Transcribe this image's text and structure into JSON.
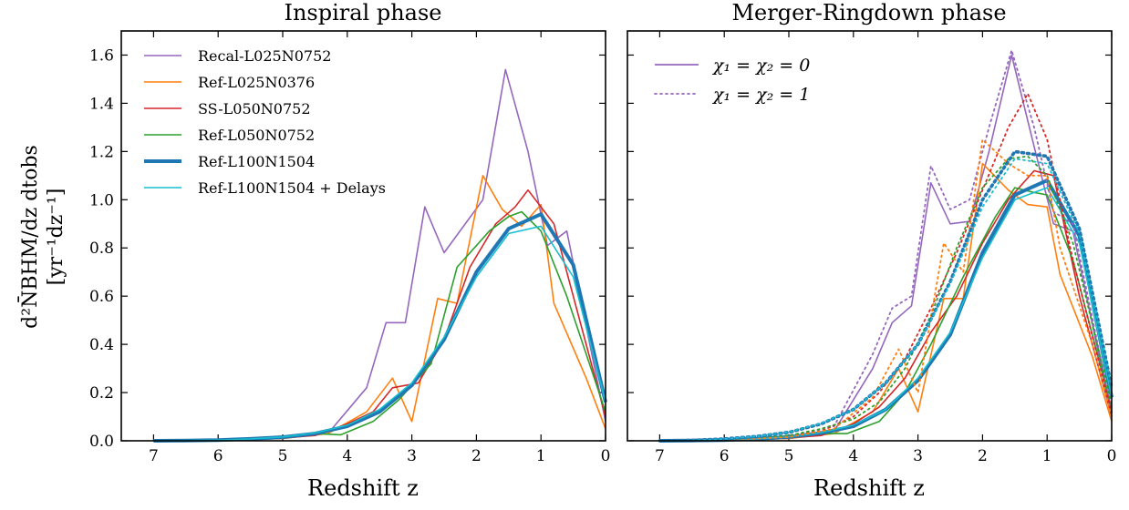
{
  "chart_data": [
    {
      "type": "line",
      "title": "Inspiral phase",
      "xlabel": "Redshift z",
      "ylabel_line1": "d²N̄BHM/dz dtobs",
      "ylabel_line2": "[yr⁻¹dz⁻¹]",
      "xlim": [
        7.5,
        0
      ],
      "ylim": [
        0,
        1.7
      ],
      "x_ticks": [
        "7",
        "6",
        "5",
        "4",
        "3",
        "2",
        "1",
        "0"
      ],
      "y_ticks": [
        "0.0",
        "0.2",
        "0.4",
        "0.6",
        "0.8",
        "1.0",
        "1.2",
        "1.4",
        "1.6"
      ],
      "legend_position": "upper-left",
      "series": [
        {
          "name": "Recal-L025N0752",
          "color": "#9467bd",
          "width": 1.6,
          "x": [
            7,
            6,
            5,
            4.3,
            3.7,
            3.4,
            3.1,
            2.8,
            2.5,
            1.9,
            1.55,
            1.2,
            0.9,
            0.6,
            0
          ],
          "y": [
            0,
            0.002,
            0.01,
            0.03,
            0.22,
            0.49,
            0.49,
            0.97,
            0.78,
            1.0,
            1.54,
            1.2,
            0.81,
            0.87,
            0.08
          ]
        },
        {
          "name": "Ref-L025N0376",
          "color": "#ff7f0e",
          "width": 1.6,
          "x": [
            7,
            6,
            5,
            4.3,
            3.7,
            3.3,
            3.0,
            2.6,
            2.3,
            1.9,
            1.6,
            1.3,
            1.0,
            0.8,
            0.3,
            0
          ],
          "y": [
            0,
            0.002,
            0.01,
            0.03,
            0.12,
            0.26,
            0.08,
            0.59,
            0.57,
            1.1,
            0.96,
            0.89,
            0.98,
            0.57,
            0.26,
            0.05
          ]
        },
        {
          "name": "SS-L050N0752",
          "color": "#d62728",
          "width": 1.6,
          "x": [
            7,
            6,
            5,
            4.5,
            4.0,
            3.6,
            3.3,
            2.9,
            2.5,
            2.1,
            1.7,
            1.4,
            1.2,
            0.8,
            0.5,
            0
          ],
          "y": [
            0,
            0.003,
            0.012,
            0.022,
            0.07,
            0.12,
            0.22,
            0.24,
            0.42,
            0.72,
            0.9,
            0.97,
            1.04,
            0.9,
            0.6,
            0.1
          ]
        },
        {
          "name": "Ref-L050N0752",
          "color": "#2ca02c",
          "width": 1.6,
          "x": [
            7,
            6,
            5,
            4.5,
            4.1,
            3.6,
            3.2,
            2.7,
            2.3,
            1.8,
            1.5,
            1.3,
            1.0,
            0.6,
            0
          ],
          "y": [
            0,
            0.003,
            0.015,
            0.03,
            0.025,
            0.08,
            0.17,
            0.32,
            0.72,
            0.87,
            0.93,
            0.95,
            0.87,
            0.6,
            0.12
          ]
        },
        {
          "name": "Ref-L100N1504",
          "color": "#1f77b4",
          "width": 4,
          "x": [
            7,
            6.5,
            6,
            5.5,
            5,
            4.5,
            4,
            3.5,
            3,
            2.5,
            2,
            1.5,
            1,
            0.5,
            0
          ],
          "y": [
            0,
            0.001,
            0.003,
            0.008,
            0.015,
            0.03,
            0.06,
            0.12,
            0.23,
            0.42,
            0.7,
            0.88,
            0.94,
            0.73,
            0.16
          ]
        },
        {
          "name": "Ref-L100N1504 + Delays",
          "color": "#17becf",
          "width": 1.6,
          "x": [
            7,
            6.5,
            6,
            5.5,
            5,
            4.5,
            4,
            3.5,
            3,
            2.5,
            2,
            1.5,
            1,
            0.5,
            0
          ],
          "y": [
            0,
            0.001,
            0.003,
            0.008,
            0.016,
            0.032,
            0.065,
            0.13,
            0.24,
            0.43,
            0.68,
            0.86,
            0.89,
            0.68,
            0.16
          ]
        }
      ]
    },
    {
      "type": "line",
      "title": "Merger-Ringdown phase",
      "xlabel": "Redshift z",
      "xlim": [
        7.5,
        0
      ],
      "ylim": [
        0,
        1.7
      ],
      "x_ticks": [
        "7",
        "6",
        "5",
        "4",
        "3",
        "2",
        "1",
        "0"
      ],
      "legend_position": "upper-left",
      "legend": [
        {
          "label": "χ₁ = χ₂ = 0",
          "style": "solid",
          "color": "#9467bd"
        },
        {
          "label": "χ₁ = χ₂ = 1",
          "style": "dotted",
          "color": "#9467bd"
        }
      ],
      "series": [
        {
          "name": "Recal-L025N0752",
          "color": "#9467bd",
          "width": 1.6,
          "dash": "",
          "x": [
            7,
            6,
            5,
            4.3,
            3.7,
            3.4,
            3.1,
            2.8,
            2.5,
            2.2,
            1.9,
            1.55,
            1.2,
            0.9,
            0.6,
            0
          ],
          "y": [
            0,
            0.002,
            0.01,
            0.04,
            0.3,
            0.49,
            0.56,
            1.07,
            0.9,
            0.91,
            1.2,
            1.6,
            1.22,
            0.9,
            0.87,
            0.1
          ]
        },
        {
          "name": "Ref-L025N0376",
          "color": "#ff7f0e",
          "width": 1.6,
          "dash": "",
          "x": [
            7,
            6,
            5,
            4.3,
            3.7,
            3.3,
            3.0,
            2.6,
            2.3,
            2.0,
            1.6,
            1.3,
            1.0,
            0.8,
            0.3,
            0
          ],
          "y": [
            0,
            0.002,
            0.01,
            0.03,
            0.12,
            0.3,
            0.12,
            0.59,
            0.59,
            1.15,
            1.04,
            0.98,
            0.97,
            0.69,
            0.35,
            0.08
          ]
        },
        {
          "name": "SS-L050N0752",
          "color": "#d62728",
          "width": 1.6,
          "dash": "",
          "x": [
            7,
            6,
            5,
            4.5,
            4.0,
            3.6,
            3.2,
            2.8,
            2.4,
            2.0,
            1.6,
            1.2,
            0.9,
            0.5,
            0
          ],
          "y": [
            0,
            0.003,
            0.012,
            0.022,
            0.07,
            0.14,
            0.26,
            0.45,
            0.6,
            0.82,
            1.0,
            1.12,
            1.1,
            0.6,
            0.1
          ]
        },
        {
          "name": "Ref-L050N0752",
          "color": "#2ca02c",
          "width": 1.6,
          "dash": "",
          "x": [
            7,
            6,
            5,
            4.5,
            4.1,
            3.6,
            3.2,
            2.8,
            2.3,
            1.8,
            1.5,
            1.2,
            1.0,
            0.6,
            0
          ],
          "y": [
            0,
            0.003,
            0.015,
            0.03,
            0.03,
            0.08,
            0.2,
            0.4,
            0.68,
            0.93,
            1.05,
            1.03,
            1.02,
            0.75,
            0.13
          ]
        },
        {
          "name": "Ref-L100N1504",
          "color": "#1f77b4",
          "width": 4,
          "dash": "",
          "x": [
            7,
            6.5,
            6,
            5.5,
            5,
            4.5,
            4,
            3.5,
            3,
            2.5,
            2,
            1.5,
            1,
            0.5,
            0
          ],
          "y": [
            0,
            0.001,
            0.003,
            0.008,
            0.016,
            0.032,
            0.06,
            0.13,
            0.25,
            0.44,
            0.78,
            1.02,
            1.08,
            0.85,
            0.18
          ]
        },
        {
          "name": "Ref-L100N1504 + Delays",
          "color": "#17becf",
          "width": 1.6,
          "dash": "",
          "x": [
            7,
            6.5,
            6,
            5.5,
            5,
            4.5,
            4,
            3.5,
            3,
            2.5,
            2,
            1.5,
            1,
            0.5,
            0
          ],
          "y": [
            0,
            0.001,
            0.003,
            0.008,
            0.017,
            0.034,
            0.065,
            0.13,
            0.26,
            0.45,
            0.76,
            1.0,
            1.05,
            0.82,
            0.18
          ]
        },
        {
          "name": "Recal-L025N0752 (χ=1)",
          "color": "#9467bd",
          "width": 1.8,
          "dash": "2,4",
          "x": [
            7,
            6,
            5,
            4.3,
            3.7,
            3.4,
            3.1,
            2.8,
            2.5,
            2.2,
            1.9,
            1.55,
            1.2,
            0.9,
            0.6,
            0
          ],
          "y": [
            0,
            0.003,
            0.015,
            0.06,
            0.36,
            0.55,
            0.6,
            1.14,
            0.96,
            1.0,
            1.3,
            1.62,
            1.3,
            0.95,
            0.9,
            0.12
          ]
        },
        {
          "name": "SS-L050N0752 (χ=1)",
          "color": "#d62728",
          "width": 1.8,
          "dash": "2,4",
          "x": [
            7,
            6,
            5,
            4.5,
            4.0,
            3.6,
            3.2,
            2.8,
            2.4,
            2.0,
            1.6,
            1.3,
            1.0,
            0.6,
            0
          ],
          "y": [
            0,
            0.004,
            0.02,
            0.04,
            0.1,
            0.2,
            0.34,
            0.55,
            0.78,
            1.04,
            1.3,
            1.44,
            1.25,
            0.75,
            0.12
          ]
        },
        {
          "name": "Ref-L050N0752 (χ=1)",
          "color": "#2ca02c",
          "width": 1.8,
          "dash": "2,4",
          "x": [
            7,
            6,
            5,
            4.5,
            4.0,
            3.6,
            3.2,
            2.8,
            2.4,
            2.0,
            1.6,
            1.3,
            1.0,
            0.6,
            0
          ],
          "y": [
            0,
            0.004,
            0.022,
            0.05,
            0.09,
            0.16,
            0.3,
            0.52,
            0.8,
            1.05,
            1.17,
            1.18,
            1.1,
            0.82,
            0.15
          ]
        },
        {
          "name": "Ref-L025N0376 (χ=1)",
          "color": "#ff7f0e",
          "width": 1.8,
          "dash": "2,4",
          "x": [
            7,
            6,
            5,
            4.3,
            3.7,
            3.3,
            3.0,
            2.6,
            2.3,
            2.0,
            1.6,
            1.3,
            1.0,
            0.8,
            0.3,
            0
          ],
          "y": [
            0,
            0.003,
            0.015,
            0.05,
            0.18,
            0.38,
            0.2,
            0.82,
            0.7,
            1.25,
            1.15,
            1.1,
            1.1,
            0.8,
            0.4,
            0.1
          ]
        },
        {
          "name": "Ref-L100N1504 (χ=1)",
          "color": "#1f77b4",
          "width": 3.6,
          "dash": "2,4",
          "x": [
            7,
            6.5,
            6,
            5.5,
            5,
            4.5,
            4,
            3.5,
            3,
            2.5,
            2,
            1.5,
            1,
            0.5,
            0
          ],
          "y": [
            0,
            0.002,
            0.008,
            0.018,
            0.035,
            0.07,
            0.13,
            0.24,
            0.4,
            0.66,
            1.0,
            1.2,
            1.18,
            0.88,
            0.22
          ]
        },
        {
          "name": "Ref-L100N1504 + Delays (χ=1)",
          "color": "#17becf",
          "width": 1.8,
          "dash": "2,4",
          "x": [
            7,
            6.5,
            6,
            5.5,
            5,
            4.5,
            4,
            3.5,
            3,
            2.5,
            2,
            1.5,
            1,
            0.5,
            0
          ],
          "y": [
            0,
            0.002,
            0.008,
            0.018,
            0.036,
            0.072,
            0.13,
            0.24,
            0.4,
            0.65,
            0.97,
            1.17,
            1.15,
            0.86,
            0.22
          ]
        }
      ]
    }
  ]
}
